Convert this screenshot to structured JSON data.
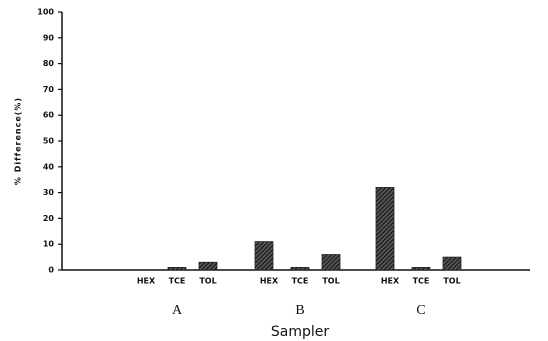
{
  "chart_data": {
    "type": "bar",
    "y_label": "% Difference(%)",
    "x_label": "Sampler",
    "categories": [
      "A",
      "B",
      "C"
    ],
    "series": [
      {
        "name": "HEX",
        "color": "#222222",
        "values": [
          0,
          11,
          32
        ]
      },
      {
        "name": "TCE",
        "color": "#222222",
        "values": [
          1,
          1,
          1
        ]
      },
      {
        "name": "TOL",
        "color": "#222222",
        "values": [
          3,
          6,
          5
        ]
      }
    ],
    "ylim": [
      0,
      100
    ],
    "yticks": [
      0,
      10,
      20,
      30,
      40,
      50,
      60,
      70,
      80,
      90,
      100
    ],
    "grid": false
  }
}
